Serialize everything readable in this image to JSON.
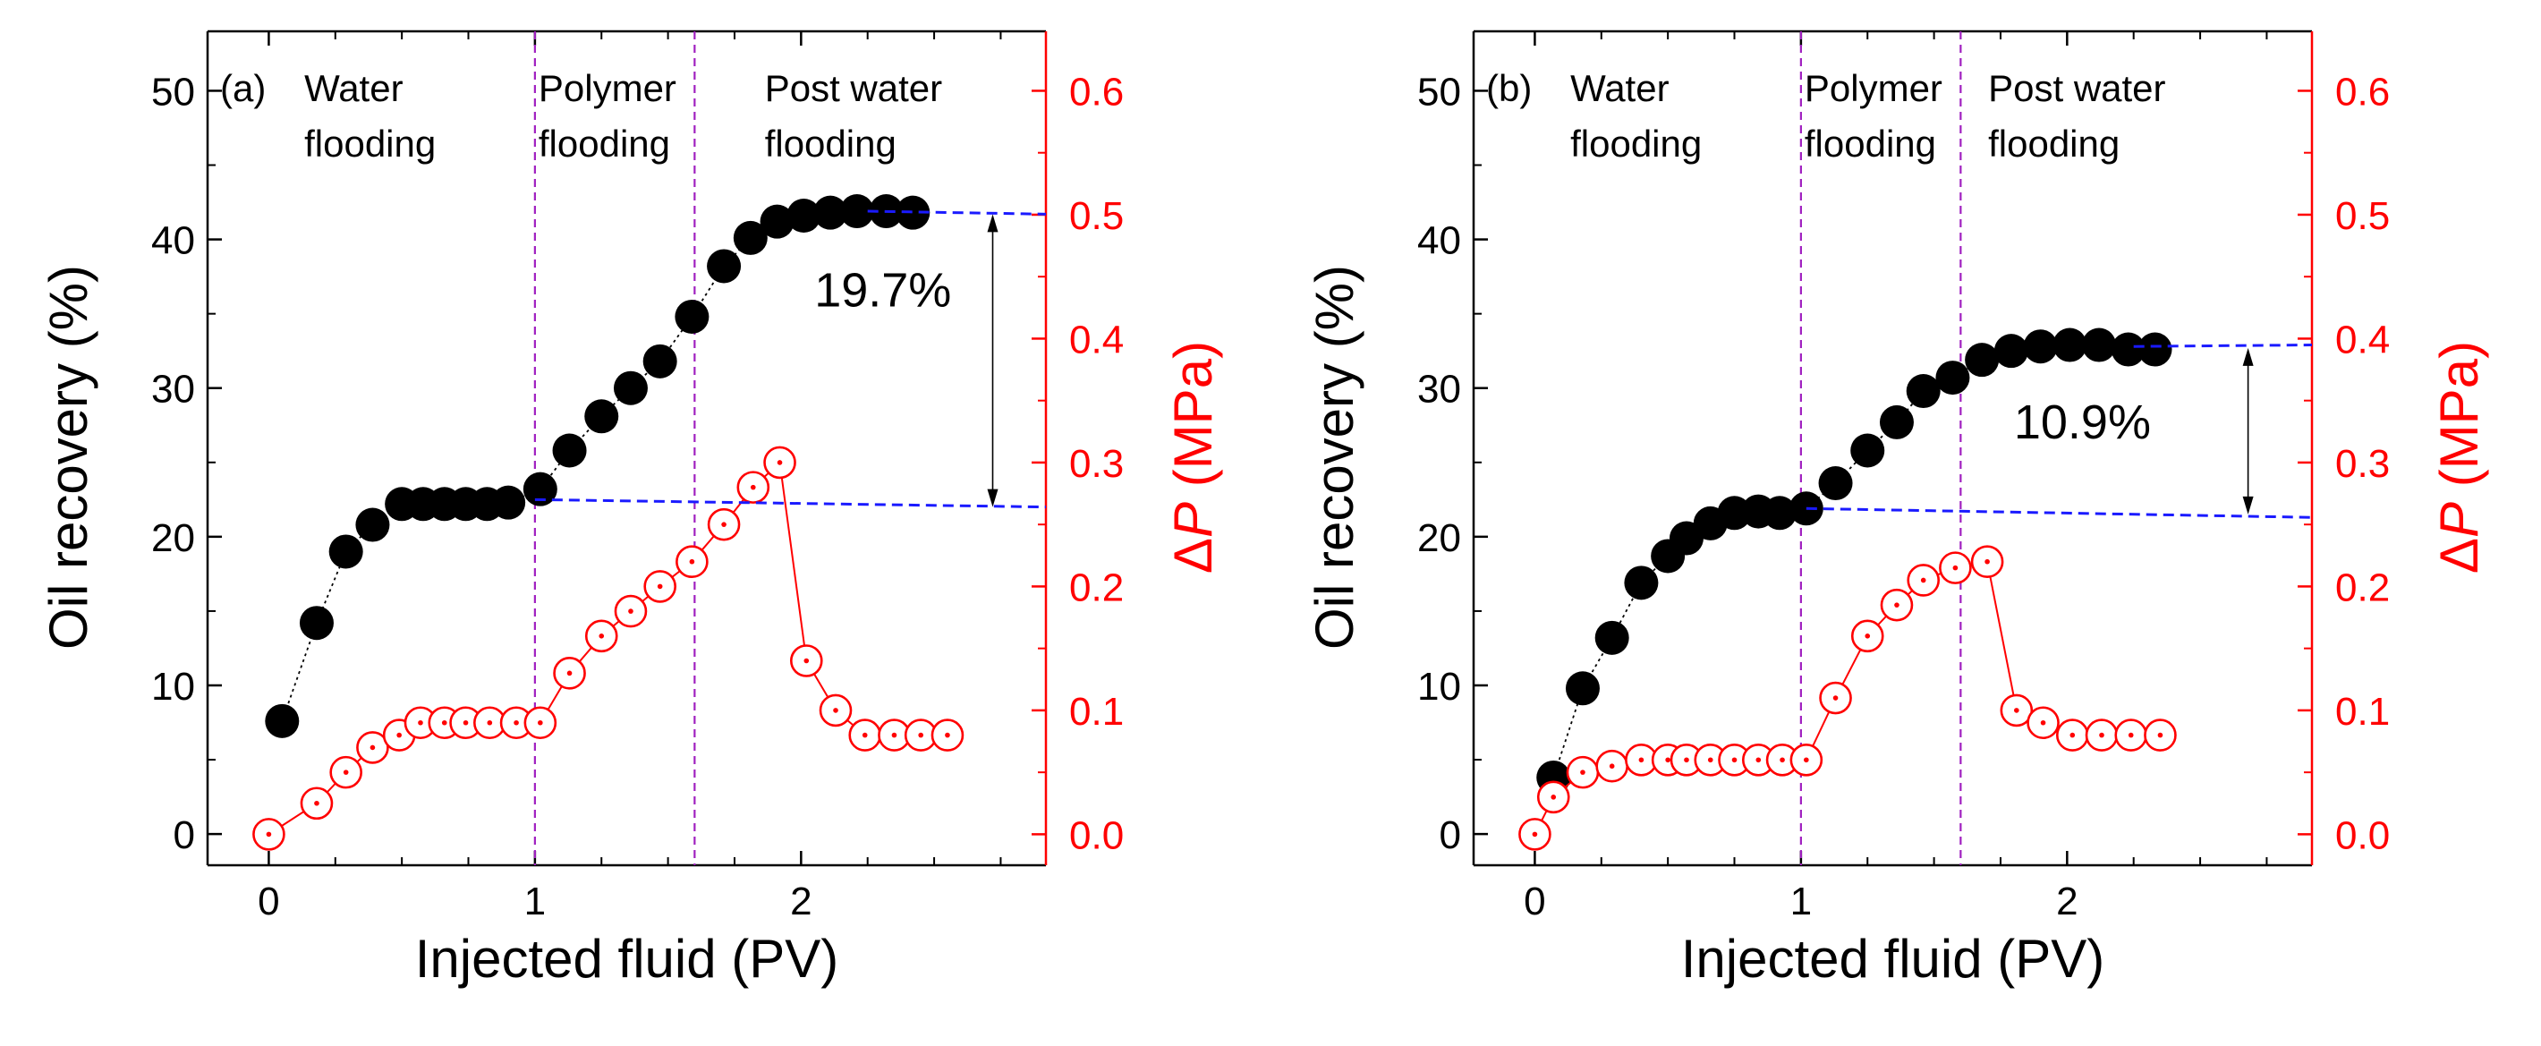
{
  "chart_data": [
    {
      "id": "a",
      "type": "scatter",
      "panel_label": "(a)",
      "xlabel": "Injected fluid (PV)",
      "ylabel": "Oil recovery (%)",
      "y2label_delta": "Δ",
      "y2label_p": "P",
      "y2label_unit": " (MPa)",
      "xlim": [
        -0.23,
        2.92
      ],
      "ylim": [
        -2.1,
        54
      ],
      "y2lim": [
        -0.025,
        0.648
      ],
      "xticks": [
        "0",
        "1",
        "2"
      ],
      "yticks": [
        "0",
        "10",
        "20",
        "30",
        "40",
        "50"
      ],
      "y2ticks": [
        "0.0",
        "0.1",
        "0.2",
        "0.3",
        "0.4",
        "0.5",
        "0.6"
      ],
      "stage_lines_x": [
        1.0,
        1.6
      ],
      "stage_labels": [
        {
          "line1": "Water",
          "line2": "flooding",
          "x": 0.12
        },
        {
          "line1": "Polymer",
          "line2": "flooding",
          "x": 1.0
        },
        {
          "line1": "Post water",
          "line2": "flooding",
          "x": 1.85
        }
      ],
      "series": [
        {
          "name": "Oil recovery",
          "axis": "left",
          "color": "#000000",
          "marker": "filled-circle",
          "x": [
            0.05,
            0.18,
            0.29,
            0.39,
            0.5,
            0.58,
            0.66,
            0.74,
            0.82,
            0.9,
            1.02,
            1.13,
            1.25,
            1.36,
            1.47,
            1.59,
            1.71,
            1.81,
            1.91,
            2.01,
            2.11,
            2.21,
            2.32,
            2.42
          ],
          "values": [
            7.6,
            14.2,
            19.0,
            20.8,
            22.2,
            22.2,
            22.2,
            22.2,
            22.2,
            22.3,
            23.2,
            25.8,
            28.1,
            30.0,
            31.8,
            34.8,
            38.2,
            40.1,
            41.2,
            41.6,
            41.8,
            41.9,
            41.9,
            41.8
          ]
        },
        {
          "name": "ΔP",
          "axis": "right",
          "color": "#ff0000",
          "marker": "open-circle-dot",
          "x": [
            0.0,
            0.18,
            0.29,
            0.39,
            0.49,
            0.57,
            0.66,
            0.74,
            0.83,
            0.93,
            1.02,
            1.13,
            1.25,
            1.36,
            1.47,
            1.59,
            1.71,
            1.82,
            1.92,
            2.02,
            2.13,
            2.24,
            2.35,
            2.45,
            2.55
          ],
          "values": [
            0.0,
            0.025,
            0.05,
            0.07,
            0.08,
            0.09,
            0.09,
            0.09,
            0.09,
            0.09,
            0.09,
            0.13,
            0.16,
            0.18,
            0.2,
            0.22,
            0.25,
            0.28,
            0.3,
            0.14,
            0.1,
            0.08,
            0.08,
            0.08,
            0.08
          ]
        }
      ],
      "reference_lines": [
        {
          "style": "blue-dashed",
          "x": [
            1.0,
            2.92
          ],
          "y": [
            22.5,
            22.0
          ]
        },
        {
          "style": "blue-dashed",
          "x": [
            2.25,
            2.92
          ],
          "y": [
            41.9,
            41.7
          ]
        }
      ],
      "annotation": {
        "text": "19.7%",
        "x": 2.05,
        "y": 35.5,
        "arrow_x": 2.72,
        "arrow_from": 22.0,
        "arrow_to": 41.7
      }
    },
    {
      "id": "b",
      "type": "scatter",
      "panel_label": "(b)",
      "xlabel": "Injected fluid (PV)",
      "ylabel": "Oil recovery (%)",
      "y2label_delta": "Δ",
      "y2label_p": "P",
      "y2label_unit": " (MPa)",
      "xlim": [
        -0.23,
        2.92
      ],
      "ylim": [
        -2.1,
        54
      ],
      "y2lim": [
        -0.025,
        0.648
      ],
      "xticks": [
        "0",
        "1",
        "2"
      ],
      "yticks": [
        "0",
        "10",
        "20",
        "30",
        "40",
        "50"
      ],
      "y2ticks": [
        "0.0",
        "0.1",
        "0.2",
        "0.3",
        "0.4",
        "0.5",
        "0.6"
      ],
      "stage_lines_x": [
        1.0,
        1.6
      ],
      "stage_labels": [
        {
          "line1": "Water",
          "line2": "flooding",
          "x": 0.12
        },
        {
          "line1": "Polymer",
          "line2": "flooding",
          "x": 1.0
        },
        {
          "line1": "Post water",
          "line2": "flooding",
          "x": 1.69
        }
      ],
      "series": [
        {
          "name": "Oil recovery",
          "axis": "left",
          "color": "#000000",
          "marker": "filled-circle",
          "x": [
            0.07,
            0.18,
            0.29,
            0.4,
            0.5,
            0.57,
            0.66,
            0.75,
            0.84,
            0.92,
            1.02,
            1.13,
            1.25,
            1.36,
            1.46,
            1.57,
            1.68,
            1.79,
            1.9,
            2.01,
            2.12,
            2.23,
            2.33
          ],
          "values": [
            3.8,
            9.8,
            13.2,
            16.9,
            18.7,
            19.9,
            20.9,
            21.6,
            21.7,
            21.6,
            21.9,
            23.6,
            25.8,
            27.7,
            29.8,
            30.7,
            31.9,
            32.5,
            32.8,
            32.9,
            32.9,
            32.6,
            32.6
          ]
        },
        {
          "name": "ΔP",
          "axis": "right",
          "color": "#ff0000",
          "marker": "open-circle-dot",
          "x": [
            0.0,
            0.07,
            0.18,
            0.29,
            0.4,
            0.5,
            0.57,
            0.66,
            0.75,
            0.84,
            0.93,
            1.02,
            1.13,
            1.25,
            1.36,
            1.46,
            1.58,
            1.7,
            1.81,
            1.91,
            2.02,
            2.13,
            2.24,
            2.35
          ],
          "values": [
            0.0,
            0.03,
            0.05,
            0.055,
            0.06,
            0.06,
            0.06,
            0.06,
            0.06,
            0.06,
            0.06,
            0.06,
            0.11,
            0.16,
            0.185,
            0.205,
            0.215,
            0.22,
            0.1,
            0.09,
            0.08,
            0.08,
            0.08,
            0.08
          ]
        }
      ],
      "reference_lines": [
        {
          "style": "blue-dashed",
          "x": [
            1.02,
            2.92
          ],
          "y": [
            21.9,
            21.3
          ]
        },
        {
          "style": "blue-dashed",
          "x": [
            2.25,
            2.92
          ],
          "y": [
            32.8,
            32.9
          ]
        }
      ],
      "annotation": {
        "text": "10.9%",
        "x": 1.8,
        "y": 26.6,
        "arrow_x": 2.68,
        "arrow_from": 21.5,
        "arrow_to": 32.7
      }
    }
  ]
}
